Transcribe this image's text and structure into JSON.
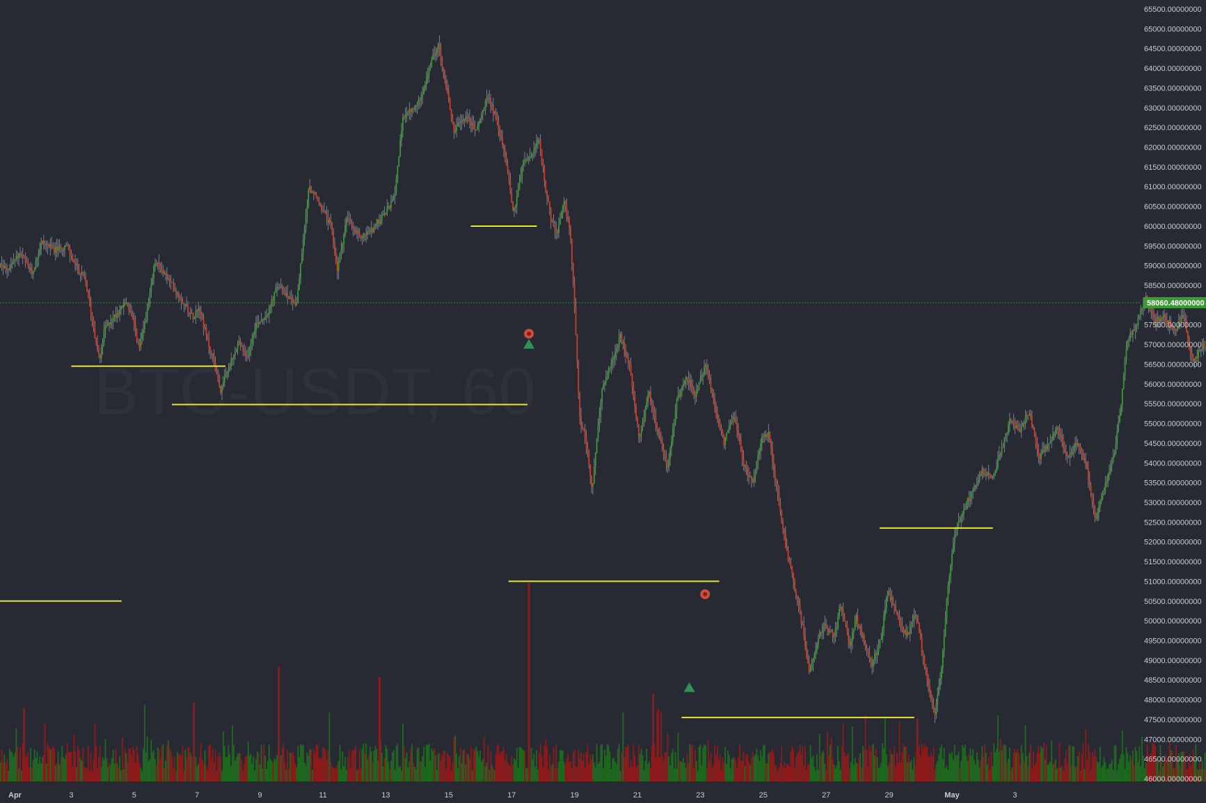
{
  "chart_data": {
    "type": "candlestick",
    "symbol_watermark": "BTC-USDT, 60",
    "ylim": [
      46000,
      65700
    ],
    "y_ticks": [
      "65500.00000000",
      "65000.00000000",
      "64500.00000000",
      "64000.00000000",
      "63500.00000000",
      "63000.00000000",
      "62500.00000000",
      "62000.00000000",
      "61500.00000000",
      "61000.00000000",
      "60500.00000000",
      "60000.00000000",
      "59500.00000000",
      "59000.00000000",
      "58500.00000000",
      "58000.00000000",
      "57500.00000000",
      "57000.00000000",
      "56500.00000000",
      "56000.00000000",
      "55500.00000000",
      "55000.00000000",
      "54500.00000000",
      "54000.00000000",
      "53500.00000000",
      "53000.00000000",
      "52500.00000000",
      "52000.00000000",
      "51500.00000000",
      "51000.00000000",
      "50500.00000000",
      "50000.00000000",
      "49500.00000000",
      "49000.00000000",
      "48500.00000000",
      "48000.00000000",
      "47500.00000000",
      "47000.00000000",
      "46500.00000000",
      "46000.00000000"
    ],
    "x_ticks": [
      {
        "label": "Apr",
        "day": 1,
        "bold": true
      },
      {
        "label": "3",
        "day": 3
      },
      {
        "label": "5",
        "day": 5
      },
      {
        "label": "7",
        "day": 7
      },
      {
        "label": "9",
        "day": 9
      },
      {
        "label": "11",
        "day": 11
      },
      {
        "label": "13",
        "day": 13
      },
      {
        "label": "15",
        "day": 15
      },
      {
        "label": "17",
        "day": 17
      },
      {
        "label": "19",
        "day": 19
      },
      {
        "label": "21",
        "day": 21
      },
      {
        "label": "23",
        "day": 23
      },
      {
        "label": "25",
        "day": 25
      },
      {
        "label": "27",
        "day": 27
      },
      {
        "label": "29",
        "day": 29
      },
      {
        "label": "May",
        "day": 31,
        "bold": true
      },
      {
        "label": "3",
        "day": 33
      }
    ],
    "last_price": "58060.48000000",
    "last_price_value": 58060.48,
    "price_path": [
      [
        0.5,
        59100
      ],
      [
        1.0,
        58900
      ],
      [
        1.4,
        59300
      ],
      [
        1.8,
        58800
      ],
      [
        2.1,
        59600
      ],
      [
        2.5,
        59400
      ],
      [
        2.9,
        59500
      ],
      [
        3.1,
        59100
      ],
      [
        3.5,
        58600
      ],
      [
        3.8,
        57200
      ],
      [
        3.95,
        56600
      ],
      [
        4.1,
        57400
      ],
      [
        4.5,
        57800
      ],
      [
        4.8,
        58100
      ],
      [
        5.0,
        57600
      ],
      [
        5.2,
        56900
      ],
      [
        5.5,
        58000
      ],
      [
        5.7,
        59100
      ],
      [
        6.0,
        58800
      ],
      [
        6.5,
        58200
      ],
      [
        6.9,
        57700
      ],
      [
        7.1,
        58000
      ],
      [
        7.4,
        57000
      ],
      [
        7.6,
        56500
      ],
      [
        7.8,
        55800
      ],
      [
        8.0,
        56300
      ],
      [
        8.4,
        57100
      ],
      [
        8.6,
        56600
      ],
      [
        8.9,
        57500
      ],
      [
        9.3,
        57800
      ],
      [
        9.6,
        58500
      ],
      [
        10.0,
        58200
      ],
      [
        10.2,
        58000
      ],
      [
        10.4,
        59500
      ],
      [
        10.6,
        61000
      ],
      [
        10.9,
        60600
      ],
      [
        11.3,
        60000
      ],
      [
        11.5,
        58900
      ],
      [
        11.8,
        60200
      ],
      [
        12.2,
        59700
      ],
      [
        12.6,
        59900
      ],
      [
        13.0,
        60300
      ],
      [
        13.3,
        60700
      ],
      [
        13.6,
        62800
      ],
      [
        14.0,
        63000
      ],
      [
        14.3,
        63600
      ],
      [
        14.5,
        64200
      ],
      [
        14.7,
        64600
      ],
      [
        15.0,
        63400
      ],
      [
        15.2,
        62400
      ],
      [
        15.6,
        62800
      ],
      [
        15.9,
        62400
      ],
      [
        16.3,
        63300
      ],
      [
        16.6,
        62600
      ],
      [
        16.9,
        61500
      ],
      [
        17.1,
        60300
      ],
      [
        17.4,
        61600
      ],
      [
        17.7,
        61800
      ],
      [
        17.9,
        62200
      ],
      [
        18.1,
        61100
      ],
      [
        18.3,
        60100
      ],
      [
        18.5,
        59800
      ],
      [
        18.7,
        60600
      ],
      [
        18.9,
        59900
      ],
      [
        19.1,
        57100
      ],
      [
        19.2,
        55200
      ],
      [
        19.4,
        54500
      ],
      [
        19.6,
        53300
      ],
      [
        19.9,
        55800
      ],
      [
        20.2,
        56500
      ],
      [
        20.5,
        57200
      ],
      [
        20.8,
        56400
      ],
      [
        21.1,
        54600
      ],
      [
        21.4,
        55800
      ],
      [
        21.7,
        54800
      ],
      [
        22.0,
        53900
      ],
      [
        22.3,
        55600
      ],
      [
        22.6,
        56200
      ],
      [
        22.9,
        55700
      ],
      [
        23.2,
        56500
      ],
      [
        23.5,
        55400
      ],
      [
        23.8,
        54500
      ],
      [
        24.1,
        55300
      ],
      [
        24.4,
        54000
      ],
      [
        24.7,
        53500
      ],
      [
        25.0,
        54600
      ],
      [
        25.2,
        54800
      ],
      [
        25.5,
        53200
      ],
      [
        25.8,
        51700
      ],
      [
        26.1,
        50600
      ],
      [
        26.3,
        49800
      ],
      [
        26.5,
        48700
      ],
      [
        26.8,
        49600
      ],
      [
        27.0,
        49900
      ],
      [
        27.3,
        49600
      ],
      [
        27.5,
        50400
      ],
      [
        27.8,
        49400
      ],
      [
        28.0,
        50100
      ],
      [
        28.3,
        49300
      ],
      [
        28.5,
        48900
      ],
      [
        28.8,
        49600
      ],
      [
        29.0,
        50800
      ],
      [
        29.3,
        50100
      ],
      [
        29.6,
        49600
      ],
      [
        29.9,
        50200
      ],
      [
        30.1,
        49200
      ],
      [
        30.3,
        48300
      ],
      [
        30.5,
        47600
      ],
      [
        30.7,
        48700
      ],
      [
        30.9,
        50800
      ],
      [
        31.1,
        52100
      ],
      [
        31.4,
        52800
      ],
      [
        31.7,
        53300
      ],
      [
        32.0,
        53800
      ],
      [
        32.3,
        53600
      ],
      [
        32.6,
        54300
      ],
      [
        32.9,
        55100
      ],
      [
        33.2,
        54800
      ],
      [
        33.5,
        55300
      ],
      [
        33.8,
        54100
      ],
      [
        34.1,
        54500
      ],
      [
        34.4,
        54900
      ],
      [
        34.7,
        54100
      ],
      [
        35.0,
        54500
      ],
      [
        35.3,
        54000
      ],
      [
        35.6,
        52600
      ],
      [
        35.9,
        53400
      ],
      [
        36.2,
        54200
      ],
      [
        36.4,
        55400
      ],
      [
        36.6,
        57100
      ],
      [
        36.9,
        57500
      ],
      [
        37.2,
        58200
      ],
      [
        37.5,
        57600
      ],
      [
        37.8,
        57700
      ],
      [
        38.1,
        57300
      ],
      [
        38.4,
        57800
      ],
      [
        38.7,
        56500
      ],
      [
        39.0,
        57000
      ],
      [
        39.3,
        56700
      ],
      [
        39.6,
        56800
      ],
      [
        39.8,
        56500
      ],
      [
        40.0,
        57600
      ],
      [
        40.15,
        58060
      ]
    ],
    "support_lines": [
      {
        "x1": -0.6,
        "x2": 4.6,
        "y": 50500
      },
      {
        "x1": 3.0,
        "x2": 7.9,
        "y": 56450
      },
      {
        "x1": 6.2,
        "x2": 17.5,
        "y": 55480
      },
      {
        "x1": 15.7,
        "x2": 17.8,
        "y": 60000
      },
      {
        "x1": 16.9,
        "x2": 23.6,
        "y": 51000
      },
      {
        "x1": 22.4,
        "x2": 29.8,
        "y": 47550
      },
      {
        "x1": 28.7,
        "x2": 32.3,
        "y": 52350
      }
    ],
    "markers": [
      {
        "kind": "exit",
        "x": 17.55,
        "y": 57150
      },
      {
        "kind": "buy-arrow",
        "x": 17.55,
        "y": 57000
      },
      {
        "kind": "exit",
        "x": 23.15,
        "y": 50550
      },
      {
        "kind": "buy-arrow",
        "x": 22.65,
        "y": 48300
      }
    ],
    "volume_spikes": [
      {
        "x": 17.55,
        "h": 0.95
      },
      {
        "x": 9.6,
        "h": 0.55
      },
      {
        "x": 12.8,
        "h": 0.5
      },
      {
        "x": 1.5,
        "h": 0.35
      },
      {
        "x": 6.9,
        "h": 0.38
      },
      {
        "x": 21.5,
        "h": 0.42
      },
      {
        "x": 29.9,
        "h": 0.3
      }
    ],
    "colors": {
      "background": "#272a33",
      "up": "#3b9b33",
      "down": "#d83b24",
      "wick": "#8f949c",
      "support_line": "#e8e635",
      "price_line": "#3a8f35",
      "price_tag_bg": "#3b9b33",
      "volume_up": "#1e6a1e",
      "volume_down": "#8d1b1b",
      "axis_text": "#c9ccd3",
      "marker_exit": "#d24a3a",
      "marker_buy": "#2f8f55"
    }
  }
}
